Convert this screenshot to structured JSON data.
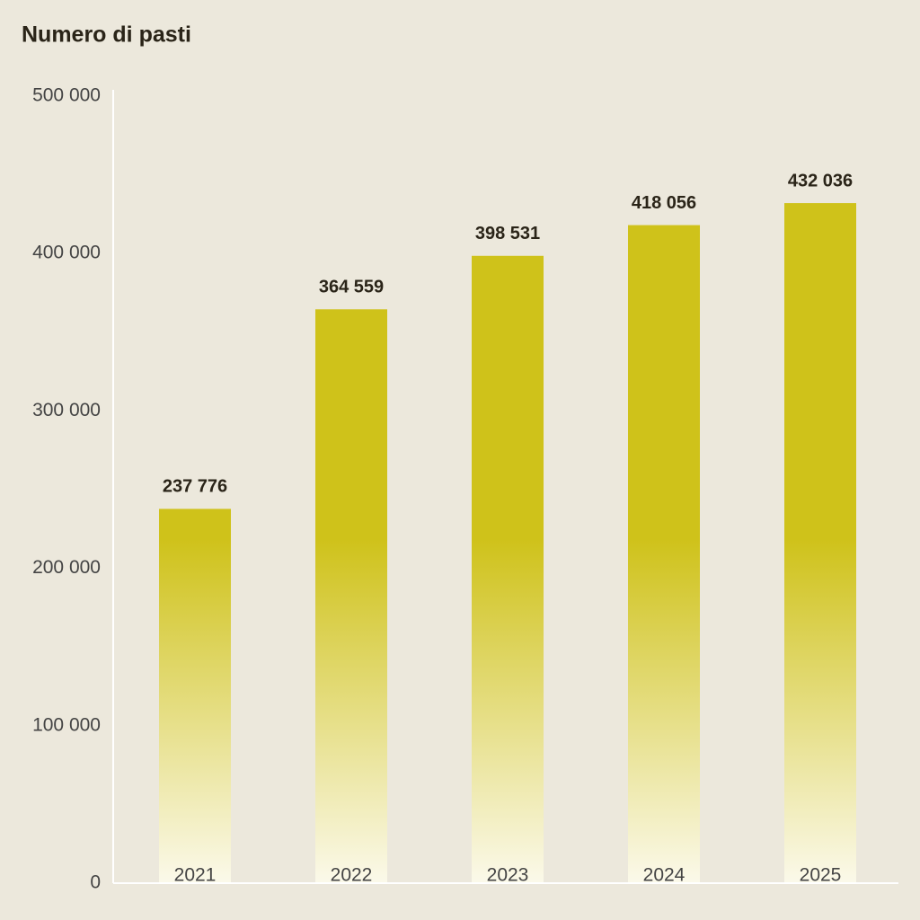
{
  "chart_data": {
    "type": "bar",
    "title": "Numero di pasti",
    "categories": [
      "2021",
      "2022",
      "2023",
      "2024",
      "2025"
    ],
    "values": [
      237776,
      364559,
      398531,
      418056,
      432036
    ],
    "value_labels": [
      "237 776",
      "364 559",
      "398 531",
      "418 056",
      "432 036"
    ],
    "color": "#cfc21a",
    "ylim": [
      0,
      500000
    ],
    "yticks": [
      0,
      {
        "value": 100000,
        "label": "100 000"
      },
      {
        "value": 200000,
        "label": "200 000"
      },
      {
        "value": 300000,
        "label": "300 000"
      },
      {
        "value": 400000,
        "label": "400 000"
      },
      {
        "value": 500000,
        "label": "500 000"
      }
    ],
    "grid": false
  }
}
